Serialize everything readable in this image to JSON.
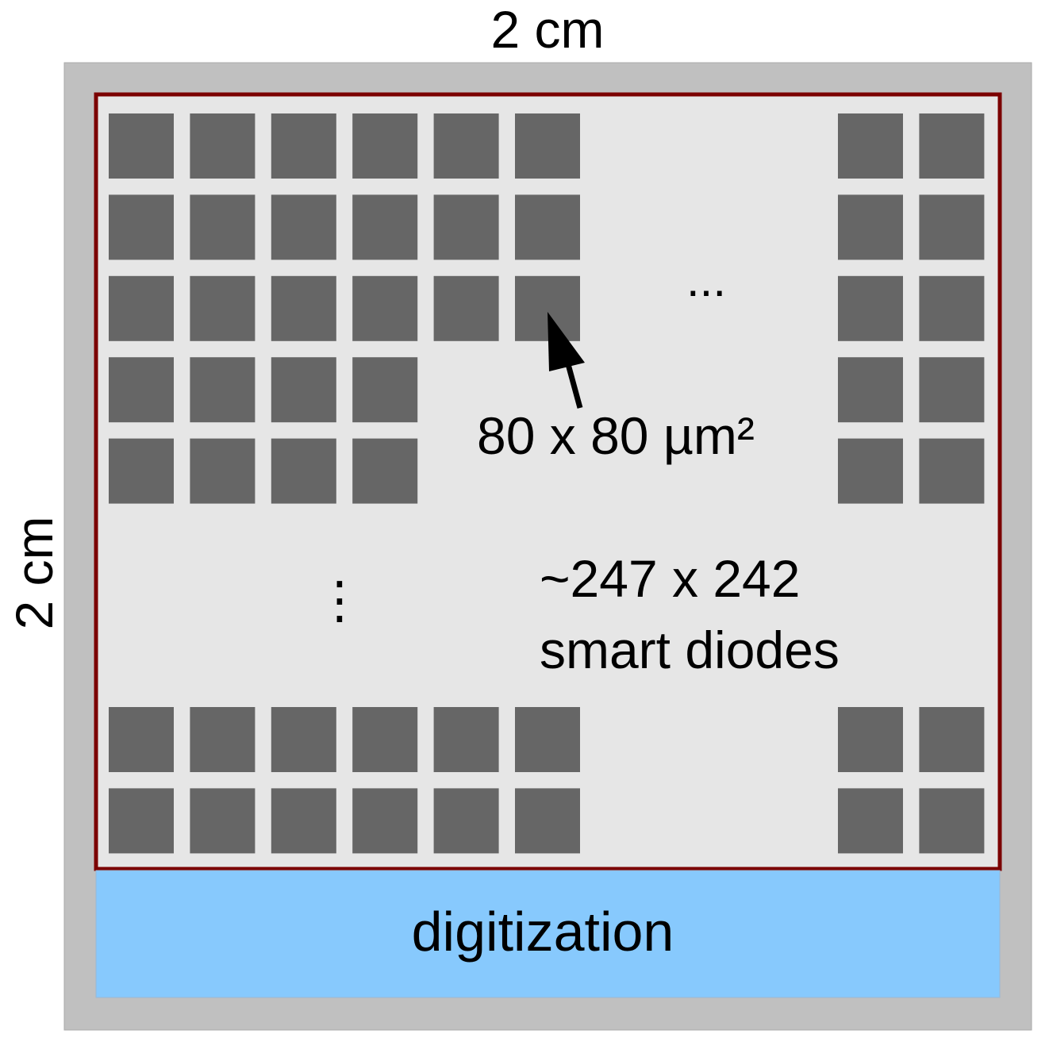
{
  "dimensions": {
    "width_label": "2 cm",
    "height_label": "2 cm"
  },
  "pixel_annotation": {
    "size_label": "80 x 80 µm²"
  },
  "array_annotation": {
    "count_line": "~247 x 242",
    "name_line": "smart diodes"
  },
  "ellipsis": {
    "horizontal": "...",
    "vertical": "⋮"
  },
  "digitization": {
    "label": "digitization"
  },
  "colors": {
    "outer_frame": "#c0c0c0",
    "sensor_area": "#e6e6e6",
    "sensor_border": "#7b0000",
    "diode": "#666666",
    "digitization_block": "#87c9fd"
  },
  "pixel_grid": {
    "left_rows": [
      6,
      6,
      6,
      4,
      4
    ],
    "bottom_rows": 2,
    "bottom_columns": 6,
    "right_columns": 2
  }
}
